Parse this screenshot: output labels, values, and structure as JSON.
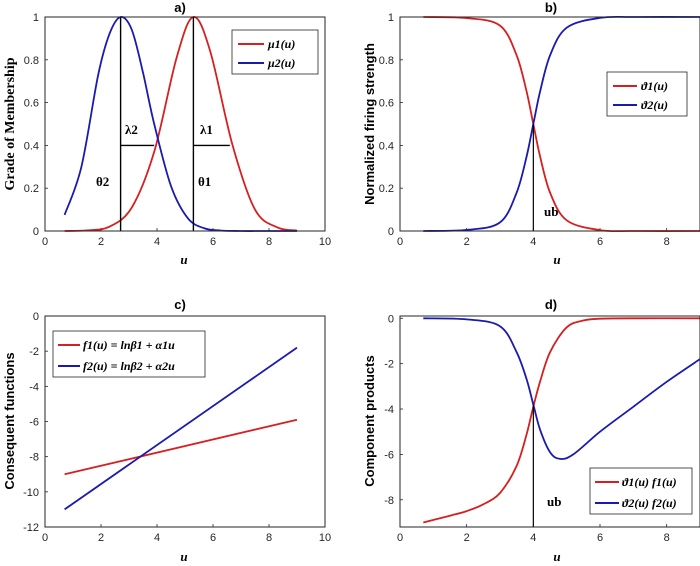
{
  "chart_data": [
    {
      "id": "a",
      "type": "line",
      "title": "a)",
      "xlabel": "u",
      "ylabel": "Grade of Membership",
      "xlim": [
        0,
        10
      ],
      "ylim": [
        0,
        1
      ],
      "xticks": [
        "0",
        "2",
        "4",
        "6",
        "8",
        "10"
      ],
      "yticks": [
        "0",
        "0.2",
        "0.4",
        "0.6",
        "0.8",
        "1"
      ],
      "series": [
        {
          "name": "μ1(u)",
          "color": "#d62020",
          "x": [
            0.7,
            1.5,
            2.3,
            3.1,
            3.9,
            4.7,
            5.3,
            5.9,
            6.7,
            7.5,
            8.3,
            9.0
          ],
          "y": [
            0.0,
            0.003,
            0.02,
            0.11,
            0.37,
            0.81,
            1.0,
            0.84,
            0.4,
            0.1,
            0.017,
            0.002
          ]
        },
        {
          "name": "μ2(u)",
          "color": "#1a1ab0",
          "x": [
            0.7,
            1.3,
            1.9,
            2.3,
            2.7,
            3.1,
            3.5,
            3.9,
            4.5,
            5.1,
            5.7,
            6.3,
            7.0,
            8.0,
            9.0
          ],
          "y": [
            0.075,
            0.3,
            0.73,
            0.92,
            1.0,
            0.94,
            0.74,
            0.5,
            0.21,
            0.06,
            0.012,
            0.002,
            0.0,
            0.0,
            0.0
          ]
        }
      ],
      "legend": [
        {
          "label": "μ1(u)",
          "color": "#d62020"
        },
        {
          "label": "μ2(u)",
          "color": "#1a1ab0"
        }
      ],
      "annotations": {
        "lambda2": "λ2",
        "lambda1": "λ1",
        "theta2": "θ2",
        "theta1": "θ1",
        "theta2_x": 2.7,
        "theta1_x": 5.3,
        "lambda2_y": 0.4,
        "lambda2_x_end": 3.9,
        "lambda1_y": 0.4,
        "lambda1_x_end": 6.6
      }
    },
    {
      "id": "b",
      "type": "line",
      "title": "b)",
      "xlabel": "u",
      "ylabel": "Normalized firing strength",
      "xlim": [
        0,
        9
      ],
      "ylim": [
        0,
        1
      ],
      "xticks": [
        "0",
        "2",
        "4",
        "6",
        "8"
      ],
      "yticks": [
        "0",
        "0.2",
        "0.4",
        "0.6",
        "0.8",
        "1"
      ],
      "series": [
        {
          "name": "ϑ1(u)",
          "color": "#d62020",
          "x": [
            0.7,
            2.0,
            3.0,
            3.5,
            3.8,
            4.0,
            4.2,
            4.5,
            5.0,
            6.0,
            7.0,
            9.0
          ],
          "y": [
            1.0,
            0.995,
            0.96,
            0.82,
            0.65,
            0.5,
            0.35,
            0.18,
            0.05,
            0.004,
            0.0,
            0.0
          ]
        },
        {
          "name": "ϑ2(u)",
          "color": "#1a1ab0",
          "x": [
            0.7,
            2.0,
            3.0,
            3.5,
            3.8,
            4.0,
            4.2,
            4.5,
            5.0,
            6.0,
            7.0,
            9.0
          ],
          "y": [
            0.0,
            0.005,
            0.04,
            0.18,
            0.35,
            0.5,
            0.65,
            0.82,
            0.95,
            0.996,
            1.0,
            1.0
          ]
        }
      ],
      "legend": [
        {
          "label": "ϑ1(u)",
          "color": "#d62020"
        },
        {
          "label": "ϑ2(u)",
          "color": "#1a1ab0"
        }
      ],
      "annotations": {
        "ub": "ub",
        "ub_x": 4.0,
        "ub_y": 0.5
      }
    },
    {
      "id": "c",
      "type": "line",
      "title": "c)",
      "xlabel": "u",
      "ylabel": "Consequent functions",
      "xlim": [
        0,
        10
      ],
      "ylim": [
        -12,
        0
      ],
      "xticks": [
        "0",
        "2",
        "4",
        "6",
        "8",
        "10"
      ],
      "yticks": [
        "-12",
        "-10",
        "-8",
        "-6",
        "-4",
        "-2",
        "0"
      ],
      "series": [
        {
          "name": "f1(u) = lnβ1 + α1u",
          "color": "#d62020",
          "x": [
            0.7,
            9.0
          ],
          "y": [
            -9.0,
            -5.9
          ]
        },
        {
          "name": "f2(u) = lnβ2 + α2u",
          "color": "#1a1ab0",
          "x": [
            0.7,
            9.0
          ],
          "y": [
            -11.0,
            -1.8
          ]
        }
      ],
      "legend": [
        {
          "label": "f1(u) = lnβ1 + α1u",
          "color": "#d62020"
        },
        {
          "label": "f2(u) = lnβ2 + α2u",
          "color": "#1a1ab0"
        }
      ]
    },
    {
      "id": "d",
      "type": "line",
      "title": "d)",
      "xlabel": "u",
      "ylabel": "Component products",
      "xlim": [
        0,
        9
      ],
      "ylim": [
        -9.2,
        0.1
      ],
      "xticks": [
        "0",
        "2",
        "4",
        "6",
        "8"
      ],
      "yticks": [
        "-8",
        "-6",
        "-4",
        "-2",
        "0"
      ],
      "series": [
        {
          "name": "ϑ1(u) f1(u)",
          "color": "#d62020",
          "x": [
            0.7,
            1.5,
            2.0,
            2.5,
            3.0,
            3.5,
            3.8,
            4.0,
            4.2,
            4.5,
            5.0,
            5.5,
            6.0,
            7.0,
            9.0
          ],
          "y": [
            -9.0,
            -8.7,
            -8.5,
            -8.2,
            -7.7,
            -6.5,
            -5.1,
            -3.9,
            -2.8,
            -1.5,
            -0.4,
            -0.1,
            -0.02,
            0.0,
            0.0
          ]
        },
        {
          "name": "ϑ2(u) f2(u)",
          "color": "#1a1ab0",
          "x": [
            0.7,
            2.0,
            3.0,
            3.5,
            3.8,
            4.0,
            4.2,
            4.5,
            4.8,
            5.2,
            6.0,
            7.0,
            8.0,
            9.0
          ],
          "y": [
            0.0,
            -0.05,
            -0.35,
            -1.5,
            -2.7,
            -3.8,
            -4.9,
            -5.9,
            -6.2,
            -6.0,
            -5.0,
            -3.9,
            -2.8,
            -1.8
          ]
        }
      ],
      "legend": [
        {
          "label": "ϑ1(u) f1(u)",
          "color": "#d62020"
        },
        {
          "label": "ϑ2(u) f2(u)",
          "color": "#1a1ab0"
        }
      ],
      "annotations": {
        "ub": "ub",
        "ub_x": 4.0,
        "ub_y": -3.8
      }
    }
  ]
}
